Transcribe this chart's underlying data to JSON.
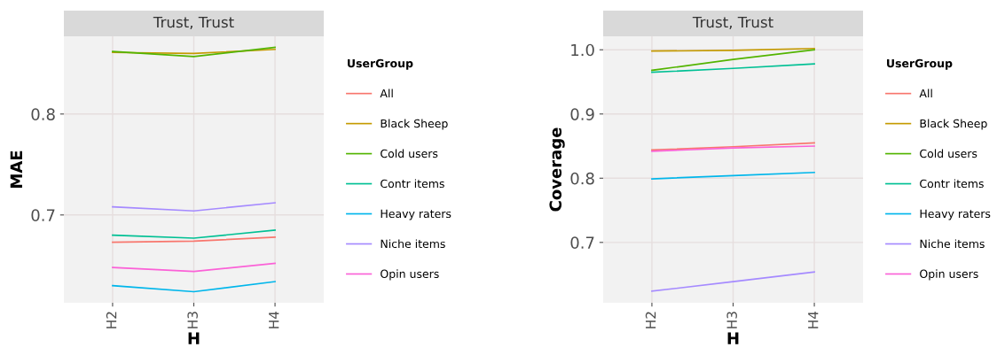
{
  "chart_data": [
    {
      "type": "line",
      "title": "Trust, Trust",
      "xlabel": "H",
      "ylabel": "MAE",
      "legend_title": "UserGroup",
      "legend": "right",
      "grid": true,
      "categories": [
        "H2",
        "H3",
        "H4"
      ],
      "ylim": [
        0.613,
        0.877
      ],
      "yticks": [
        0.7,
        0.8
      ],
      "series": [
        {
          "name": "All",
          "color": "#f8766d",
          "values": [
            0.673,
            0.674,
            0.678
          ]
        },
        {
          "name": "Black Sheep",
          "color": "#c49a00",
          "values": [
            0.861,
            0.86,
            0.864
          ]
        },
        {
          "name": "Cold users",
          "color": "#53b400",
          "values": [
            0.862,
            0.857,
            0.866
          ]
        },
        {
          "name": "Contr items",
          "color": "#00c094",
          "values": [
            0.68,
            0.677,
            0.685
          ]
        },
        {
          "name": "Heavy raters",
          "color": "#00b6eb",
          "values": [
            0.63,
            0.624,
            0.634
          ]
        },
        {
          "name": "Niche items",
          "color": "#a58aff",
          "values": [
            0.708,
            0.704,
            0.712
          ]
        },
        {
          "name": "Opin users",
          "color": "#fb61d7",
          "values": [
            0.648,
            0.644,
            0.652
          ]
        }
      ]
    },
    {
      "type": "line",
      "title": "Trust, Trust",
      "xlabel": "H",
      "ylabel": "Coverage",
      "legend_title": "UserGroup",
      "legend": "right",
      "grid": true,
      "categories": [
        "H2",
        "H3",
        "H4"
      ],
      "ylim": [
        0.606,
        1.021
      ],
      "yticks": [
        0.7,
        0.8,
        0.9,
        {
          "value": 1.0,
          "label": "1.0"
        }
      ],
      "series": [
        {
          "name": "All",
          "color": "#f8766d",
          "values": [
            0.844,
            0.849,
            0.855
          ]
        },
        {
          "name": "Black Sheep",
          "color": "#c49a00",
          "values": [
            0.998,
            0.999,
            1.002
          ]
        },
        {
          "name": "Cold users",
          "color": "#53b400",
          "values": [
            0.968,
            0.985,
            1.0
          ]
        },
        {
          "name": "Contr items",
          "color": "#00c094",
          "values": [
            0.965,
            0.971,
            0.978
          ]
        },
        {
          "name": "Heavy raters",
          "color": "#00b6eb",
          "values": [
            0.799,
            0.804,
            0.809
          ]
        },
        {
          "name": "Niche items",
          "color": "#a58aff",
          "values": [
            0.624,
            0.639,
            0.654
          ]
        },
        {
          "name": "Opin users",
          "color": "#fb61d7",
          "values": [
            0.842,
            0.847,
            0.85
          ]
        }
      ]
    }
  ]
}
